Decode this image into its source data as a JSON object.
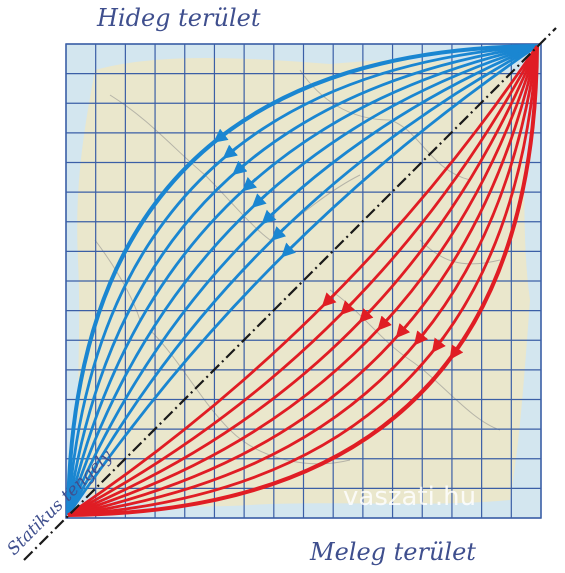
{
  "labels": {
    "cold_area": "Hideg terület",
    "warm_area": "Meleg terület",
    "static_axis": "Statikus tengely",
    "watermark": "vaszati.hu"
  },
  "grid": {
    "columns": 16,
    "rows": 16
  },
  "colors": {
    "cold": "#1a86d1",
    "warm": "#e01d24",
    "grid": "#3b5fa6",
    "map_fill": "#ece7c8",
    "background_fill": "#d3e6ef",
    "axis": "#1a1a1a",
    "title_text": "#3f4f8e"
  },
  "curves": {
    "cold_count": 8,
    "warm_count": 8
  }
}
